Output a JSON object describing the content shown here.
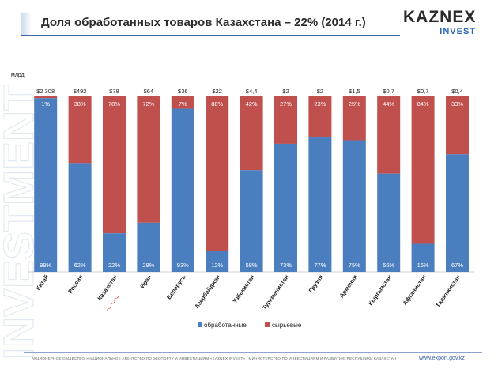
{
  "title": "Доля обработанных товаров Казахстана – 22% (2014 г.)",
  "logo": {
    "main": "KAZNEX",
    "sub": "INVEST"
  },
  "watermark": "INVESTMENT",
  "unit_label": "млрд.",
  "footer": {
    "text": "АКЦИОНЕРНОЕ ОБЩЕСТВО «НАЦИОНАЛЬНОЕ АГЕНТСТВО ПО ЭКСПОРТУ И ИНВЕСТИЦИЯМ «KAZNEX INVEST» | МИНИСТЕРСТВО ПО ИНВЕСТИЦИЯМ И РАЗВИТИЮ РЕСПУБЛИКИ КАЗАХСТАН",
    "url": "www.export.gov.kz"
  },
  "colors": {
    "processed": "#4a7ebf",
    "raw": "#c0504d"
  },
  "chart_data": {
    "type": "bar",
    "stacked": true,
    "percent_stacked": true,
    "categories": [
      "Китай",
      "Россия",
      "Казахстан",
      "Иран",
      "Беларусь",
      "Азербайджан",
      "Узбекистан",
      "Туркменистан",
      "Грузия",
      "Армения",
      "Кыргызстан",
      "Афганистан",
      "Таджикистан"
    ],
    "top_labels": [
      "$2 308",
      "$492",
      "$78",
      "$64",
      "$36",
      "$22",
      "$4,4",
      "$2",
      "$2",
      "$1,5",
      "$0,7",
      "$0,7",
      "$0,4"
    ],
    "series": [
      {
        "name": "обработанные",
        "values": [
          99,
          62,
          22,
          28,
          93,
          12,
          58,
          73,
          77,
          75,
          56,
          16,
          67
        ],
        "labels": [
          "99%",
          "62%",
          "22%",
          "28%",
          "93%",
          "12%",
          "58%",
          "73%",
          "77%",
          "75%",
          "56%",
          "16%",
          "67%"
        ]
      },
      {
        "name": "сырьевые",
        "values": [
          1,
          38,
          78,
          72,
          7,
          88,
          42,
          27,
          23,
          25,
          44,
          84,
          33
        ],
        "labels": [
          "1%",
          "38%",
          "78%",
          "72%",
          "7%",
          "88%",
          "42%",
          "27%",
          "23%",
          "25%",
          "44%",
          "84%",
          "33%"
        ]
      }
    ],
    "ylim": [
      0,
      100
    ],
    "legend": "bottom"
  }
}
